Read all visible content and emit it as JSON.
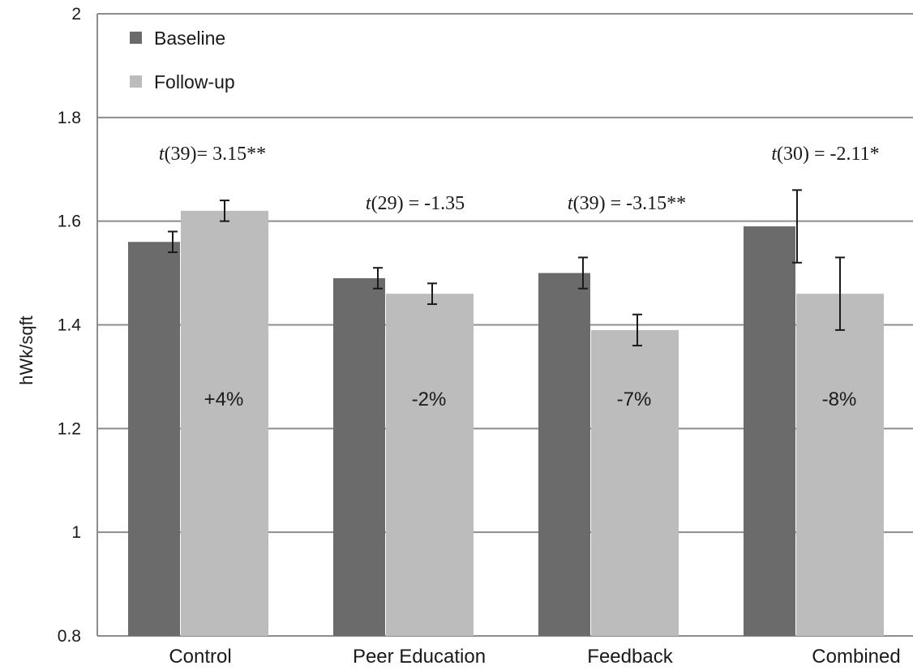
{
  "chart_data": {
    "type": "bar",
    "title": "",
    "xlabel": "",
    "ylabel": "hWk/sqft",
    "ylim": [
      0.8,
      2
    ],
    "yticks": [
      "0.8",
      "1",
      "1.2",
      "1.4",
      "1.6",
      "1.8",
      "2"
    ],
    "grid": true,
    "legend_position": "top-left",
    "categories": [
      "Control",
      "Peer Education",
      "Feedback",
      "Combined"
    ],
    "series": [
      {
        "name": "Baseline",
        "color": "#6b6b6b",
        "values": [
          1.56,
          1.49,
          1.5,
          1.59
        ],
        "error": [
          0.02,
          0.02,
          0.03,
          0.07
        ]
      },
      {
        "name": "Follow-up",
        "color": "#bcbcbc",
        "values": [
          1.62,
          1.46,
          1.39,
          1.46
        ],
        "error": [
          0.02,
          0.02,
          0.03,
          0.07
        ]
      }
    ],
    "change_labels": [
      "+4%",
      "-2%",
      "-7%",
      "-8%"
    ],
    "stat_labels": [
      {
        "t": "t",
        "rest": "(39)= 3.15**"
      },
      {
        "t": "t",
        "rest": "(29) = -1.35"
      },
      {
        "t": "t",
        "rest": "(39) = -3.15**"
      },
      {
        "t": "t",
        "rest": "(30) = -2.11*"
      }
    ]
  }
}
